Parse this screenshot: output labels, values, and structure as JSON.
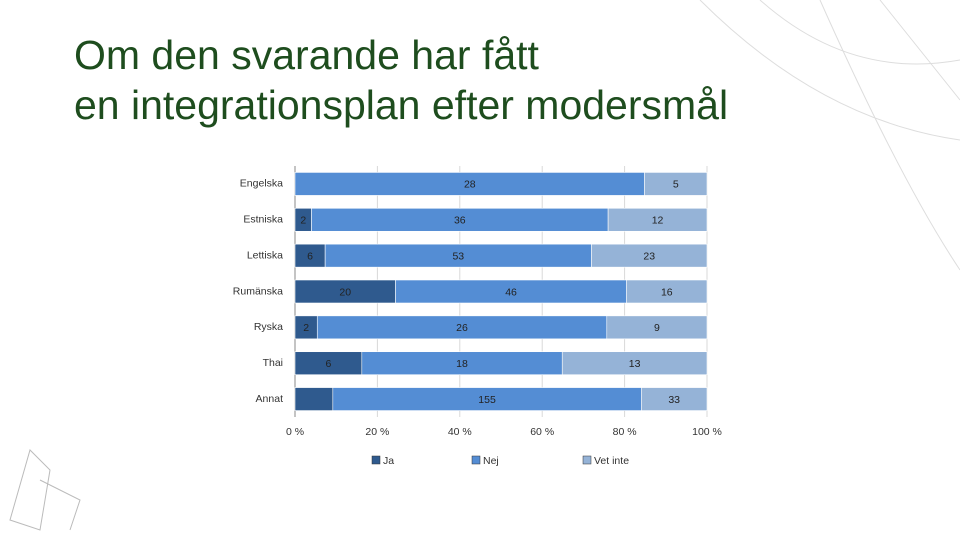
{
  "chart_data": {
    "type": "bar",
    "stacking": "percent",
    "orientation": "horizontal",
    "title": "Om den svarande har fått en integrationsplan efter modersmål",
    "categories": [
      "Engelska",
      "Estniska",
      "Lettiska",
      "Rumänska",
      "Ryska",
      "Thai",
      "Annat"
    ],
    "series": [
      {
        "name": "Ja",
        "color": "#2f5a8e",
        "values": [
          null,
          2,
          6,
          20,
          2,
          6,
          19
        ],
        "value_labels": [
          null,
          "2",
          "6",
          "20",
          "2",
          "6",
          null
        ]
      },
      {
        "name": "Nej",
        "color": "#548dd4",
        "values": [
          28,
          36,
          53,
          46,
          26,
          18,
          155
        ]
      },
      {
        "name": "Vet inte",
        "color": "#95b3d7",
        "values": [
          5,
          12,
          23,
          16,
          9,
          13,
          33
        ]
      }
    ],
    "xlim": [
      0,
      100
    ],
    "xticks": [
      {
        "value": 0,
        "label": "0 %"
      },
      {
        "value": 20,
        "label": "20 %"
      },
      {
        "value": 40,
        "label": "40 %"
      },
      {
        "value": 60,
        "label": "60 %"
      },
      {
        "value": 80,
        "label": "80 %"
      },
      {
        "value": 100,
        "label": "100 %"
      }
    ],
    "grid": true,
    "legend": "bottom"
  }
}
